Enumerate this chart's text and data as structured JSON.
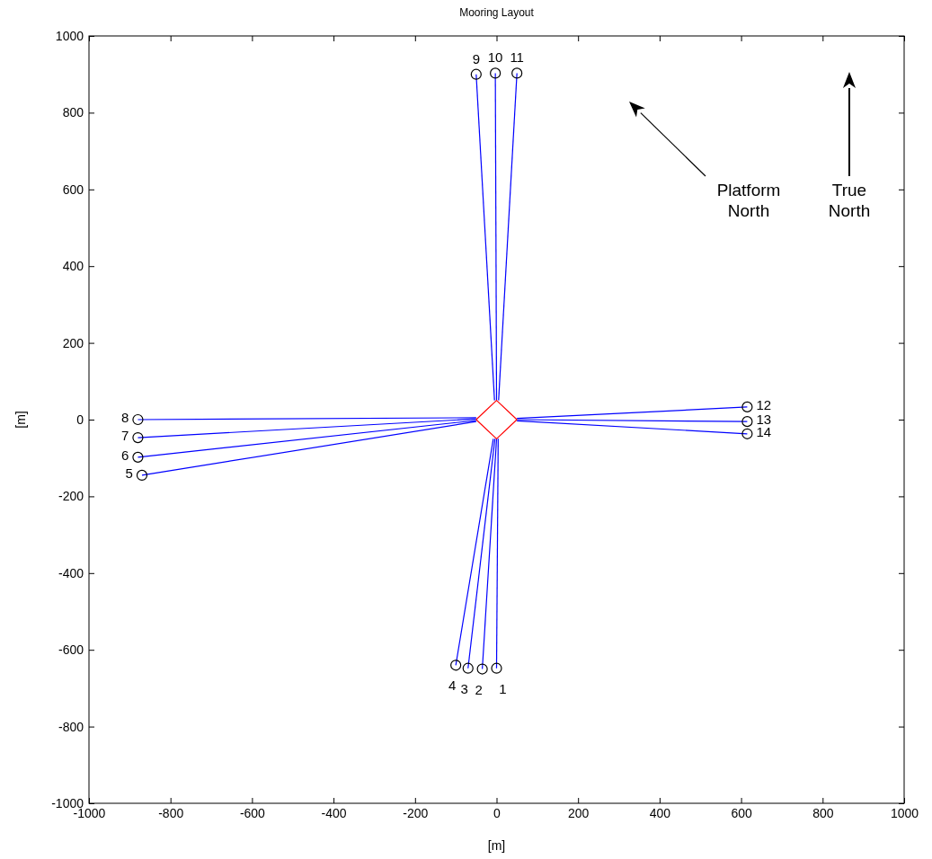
{
  "chart_data": {
    "type": "line",
    "title": "Mooring Layout",
    "xlabel": "[m]",
    "ylabel": "[m]",
    "xlim": [
      -1000,
      1000
    ],
    "ylim": [
      -1000,
      1000
    ],
    "xticks": [
      -1000,
      -800,
      -600,
      -400,
      -200,
      0,
      200,
      400,
      600,
      800,
      1000
    ],
    "yticks": [
      -1000,
      -800,
      -600,
      -400,
      -200,
      0,
      200,
      400,
      600,
      800,
      1000
    ],
    "marker": "none",
    "series": [
      {
        "color": "#0000ff",
        "x": [
          4,
          0
        ],
        "values": [
          -50,
          -648
        ]
      },
      {
        "color": "#0000ff",
        "x": [
          0,
          -35
        ],
        "values": [
          -50,
          -650
        ]
      },
      {
        "color": "#0000ff",
        "x": [
          -4,
          -70
        ],
        "values": [
          -50,
          -648
        ]
      },
      {
        "color": "#0000ff",
        "x": [
          -8,
          -100
        ],
        "values": [
          -50,
          -640
        ]
      },
      {
        "color": "#0000ff",
        "x": [
          -50,
          -870
        ],
        "values": [
          -5,
          -145
        ]
      },
      {
        "color": "#0000ff",
        "x": [
          -50,
          -880
        ],
        "values": [
          -2,
          -98
        ]
      },
      {
        "color": "#0000ff",
        "x": [
          -50,
          -880
        ],
        "values": [
          2,
          -47
        ]
      },
      {
        "color": "#0000ff",
        "x": [
          -50,
          -880
        ],
        "values": [
          5,
          0
        ]
      },
      {
        "color": "#0000ff",
        "x": [
          -5,
          -50
        ],
        "values": [
          50,
          900
        ]
      },
      {
        "color": "#0000ff",
        "x": [
          0,
          -3
        ],
        "values": [
          50,
          903
        ]
      },
      {
        "color": "#0000ff",
        "x": [
          5,
          50
        ],
        "values": [
          50,
          903
        ]
      },
      {
        "color": "#0000ff",
        "x": [
          50,
          615
        ],
        "values": [
          3,
          33
        ]
      },
      {
        "color": "#0000ff",
        "x": [
          50,
          615
        ],
        "values": [
          0,
          -5
        ]
      },
      {
        "color": "#0000ff",
        "x": [
          50,
          615
        ],
        "values": [
          -3,
          -37
        ]
      },
      {
        "color": "#ff0000",
        "x": [
          -50,
          0,
          50
        ],
        "values": [
          0,
          50,
          0
        ]
      },
      {
        "color": "#ff0000",
        "x": [
          -50,
          0,
          50
        ],
        "values": [
          0,
          -50,
          0
        ]
      },
      {
        "type": "scatter",
        "marker": "circle",
        "color": "#000000",
        "x": [
          0,
          -35,
          -70,
          -100,
          -870,
          -880,
          -880,
          -880,
          -50,
          -3,
          50,
          615,
          615,
          615
        ],
        "values": [
          -648,
          -650,
          -648,
          -640,
          -145,
          -98,
          -47,
          0,
          900,
          903,
          903,
          33,
          -5,
          -37
        ]
      }
    ],
    "annotations": [
      {
        "text": "1",
        "x": 0,
        "y": -648
      },
      {
        "text": "2",
        "x": -35,
        "y": -650
      },
      {
        "text": "3",
        "x": -70,
        "y": -648
      },
      {
        "text": "4",
        "x": -100,
        "y": -640
      },
      {
        "text": "5",
        "x": -870,
        "y": -145
      },
      {
        "text": "6",
        "x": -880,
        "y": -98
      },
      {
        "text": "7",
        "x": -880,
        "y": -47
      },
      {
        "text": "8",
        "x": -880,
        "y": 0
      },
      {
        "text": "9",
        "x": -50,
        "y": 900
      },
      {
        "text": "10",
        "x": -3,
        "y": 903
      },
      {
        "text": "11",
        "x": 50,
        "y": 903
      },
      {
        "text": "12",
        "x": 615,
        "y": 33
      },
      {
        "text": "13",
        "x": 615,
        "y": -5
      },
      {
        "text": "14",
        "x": 615,
        "y": -37
      },
      "Platform North",
      "True North"
    ]
  }
}
